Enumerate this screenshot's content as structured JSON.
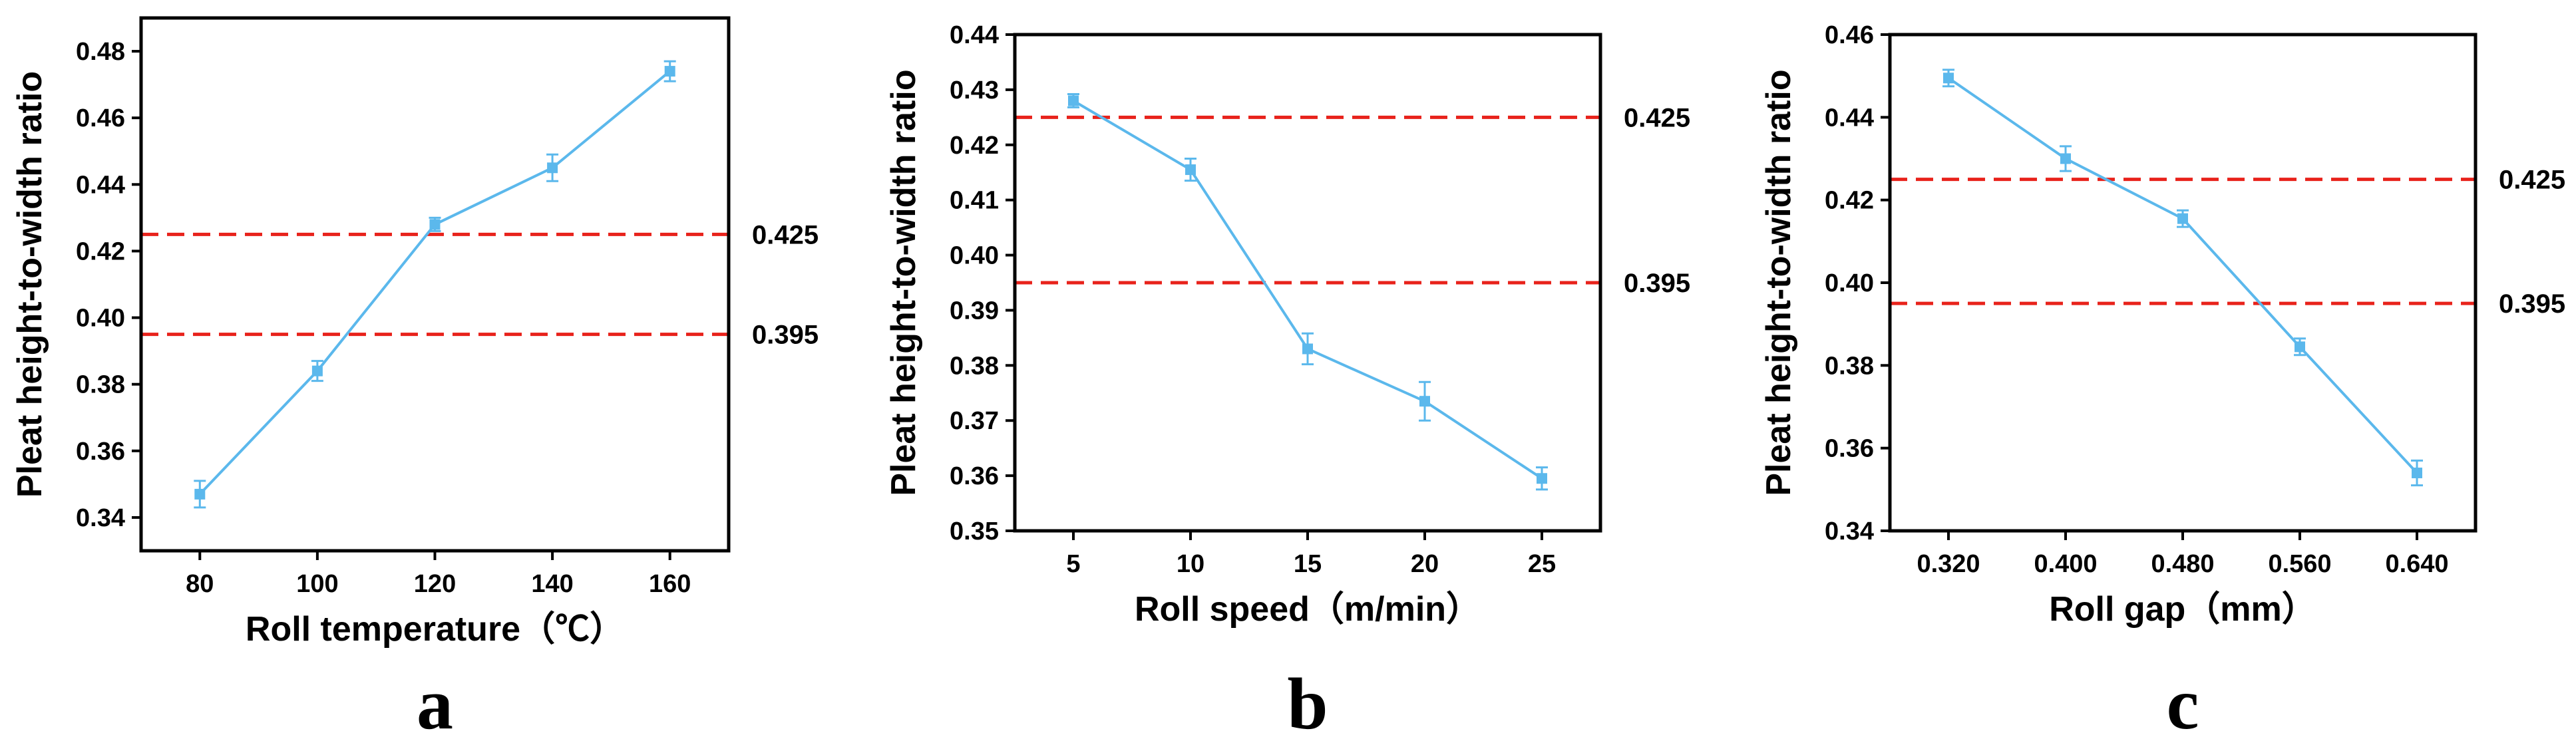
{
  "chart_data": [
    {
      "type": "line",
      "panel_label": "a",
      "xlabel": "Roll temperature（℃）",
      "ylabel": "Pleat height-to-width ratio",
      "x": [
        80,
        100,
        120,
        140,
        160
      ],
      "xticks": [
        "80",
        "100",
        "120",
        "140",
        "160"
      ],
      "xlim": [
        70,
        170
      ],
      "ylim": [
        0.33,
        0.49
      ],
      "yticks": [
        "0.34",
        "0.36",
        "0.38",
        "0.40",
        "0.42",
        "0.44",
        "0.46",
        "0.48"
      ],
      "series": [
        {
          "values": [
            0.347,
            0.384,
            0.428,
            0.445,
            0.474
          ],
          "errors": [
            0.004,
            0.003,
            0.002,
            0.004,
            0.003
          ]
        }
      ],
      "reference_lines": [
        {
          "value": 0.425,
          "label": "0.425"
        },
        {
          "value": 0.395,
          "label": "0.395"
        }
      ],
      "grid": false
    },
    {
      "type": "line",
      "panel_label": "b",
      "xlabel": "Roll speed（m/min）",
      "ylabel": "Pleat height-to-width ratio",
      "x": [
        5,
        10,
        15,
        20,
        25
      ],
      "xticks": [
        "5",
        "10",
        "15",
        "20",
        "25"
      ],
      "xlim": [
        2.5,
        27.5
      ],
      "ylim": [
        0.35,
        0.44
      ],
      "yticks": [
        "0.35",
        "0.36",
        "0.37",
        "0.38",
        "0.39",
        "0.40",
        "0.41",
        "0.42",
        "0.43",
        "0.44"
      ],
      "series": [
        {
          "values": [
            0.428,
            0.4155,
            0.383,
            0.3735,
            0.3595
          ],
          "errors": [
            0.0012,
            0.002,
            0.0028,
            0.0035,
            0.002
          ]
        }
      ],
      "reference_lines": [
        {
          "value": 0.425,
          "label": "0.425"
        },
        {
          "value": 0.395,
          "label": "0.395"
        }
      ],
      "grid": false
    },
    {
      "type": "line",
      "panel_label": "c",
      "xlabel": "Roll gap（mm）",
      "ylabel": "Pleat height-to-width ratio",
      "x": [
        0.32,
        0.4,
        0.48,
        0.56,
        0.64
      ],
      "xticks": [
        "0.320",
        "0.400",
        "0.480",
        "0.560",
        "0.640"
      ],
      "xlim": [
        0.28,
        0.68
      ],
      "ylim": [
        0.34,
        0.46
      ],
      "yticks": [
        "0.34",
        "0.36",
        "0.38",
        "0.40",
        "0.42",
        "0.44",
        "0.46"
      ],
      "series": [
        {
          "values": [
            0.4495,
            0.43,
            0.4155,
            0.3845,
            0.354
          ],
          "errors": [
            0.002,
            0.003,
            0.002,
            0.002,
            0.003
          ]
        }
      ],
      "reference_lines": [
        {
          "value": 0.425,
          "label": "0.425"
        },
        {
          "value": 0.395,
          "label": "0.395"
        }
      ],
      "grid": false
    }
  ],
  "colors": {
    "series_line": "#5bb8ec",
    "reference_line": "#e8221b",
    "axis": "#000000"
  }
}
